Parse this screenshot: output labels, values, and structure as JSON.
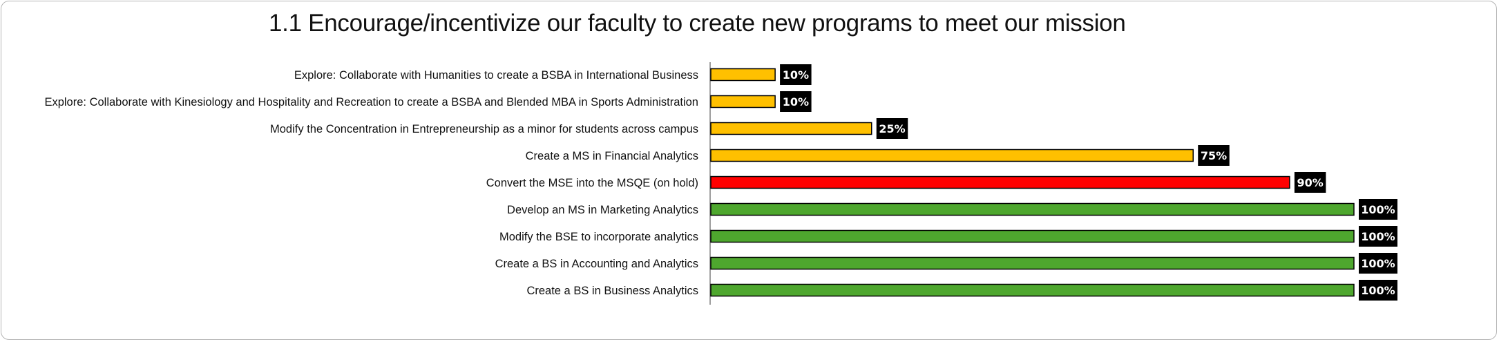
{
  "chart_data": {
    "type": "bar",
    "orientation": "horizontal",
    "title": "1.1 Encourage/incentivize our faculty to create new programs to meet our mission",
    "xlabel": "",
    "ylabel": "",
    "xlim": [
      0,
      100
    ],
    "grid": false,
    "legend": "none",
    "categories": [
      "Explore: Collaborate with Humanities to create a BSBA in International Business",
      "Explore: Collaborate with Kinesiology and Hospitality and Recreation to create a BSBA and Blended MBA in Sports Administration",
      "Modify the Concentration in Entrepreneurship as a minor for students across campus",
      "Create a MS in Financial Analytics",
      "Convert the MSE into the MSQE (on hold)",
      "Develop an MS in Marketing Analytics",
      "Modify the BSE to incorporate analytics",
      "Create a BS in Accounting and Analytics",
      "Create a BS in Business Analytics"
    ],
    "values": [
      10,
      10,
      25,
      75,
      90,
      100,
      100,
      100,
      100
    ],
    "data_labels": [
      "10%",
      "10%",
      "25%",
      "75%",
      "90%",
      "100%",
      "100%",
      "100%",
      "100%"
    ],
    "bar_colors": [
      "#FFC000",
      "#FFC000",
      "#FFC000",
      "#FFC000",
      "#FF0000",
      "#4EA72E",
      "#4EA72E",
      "#4EA72E",
      "#4EA72E"
    ],
    "label_background": "#000000",
    "bar_outline": "#000000"
  }
}
